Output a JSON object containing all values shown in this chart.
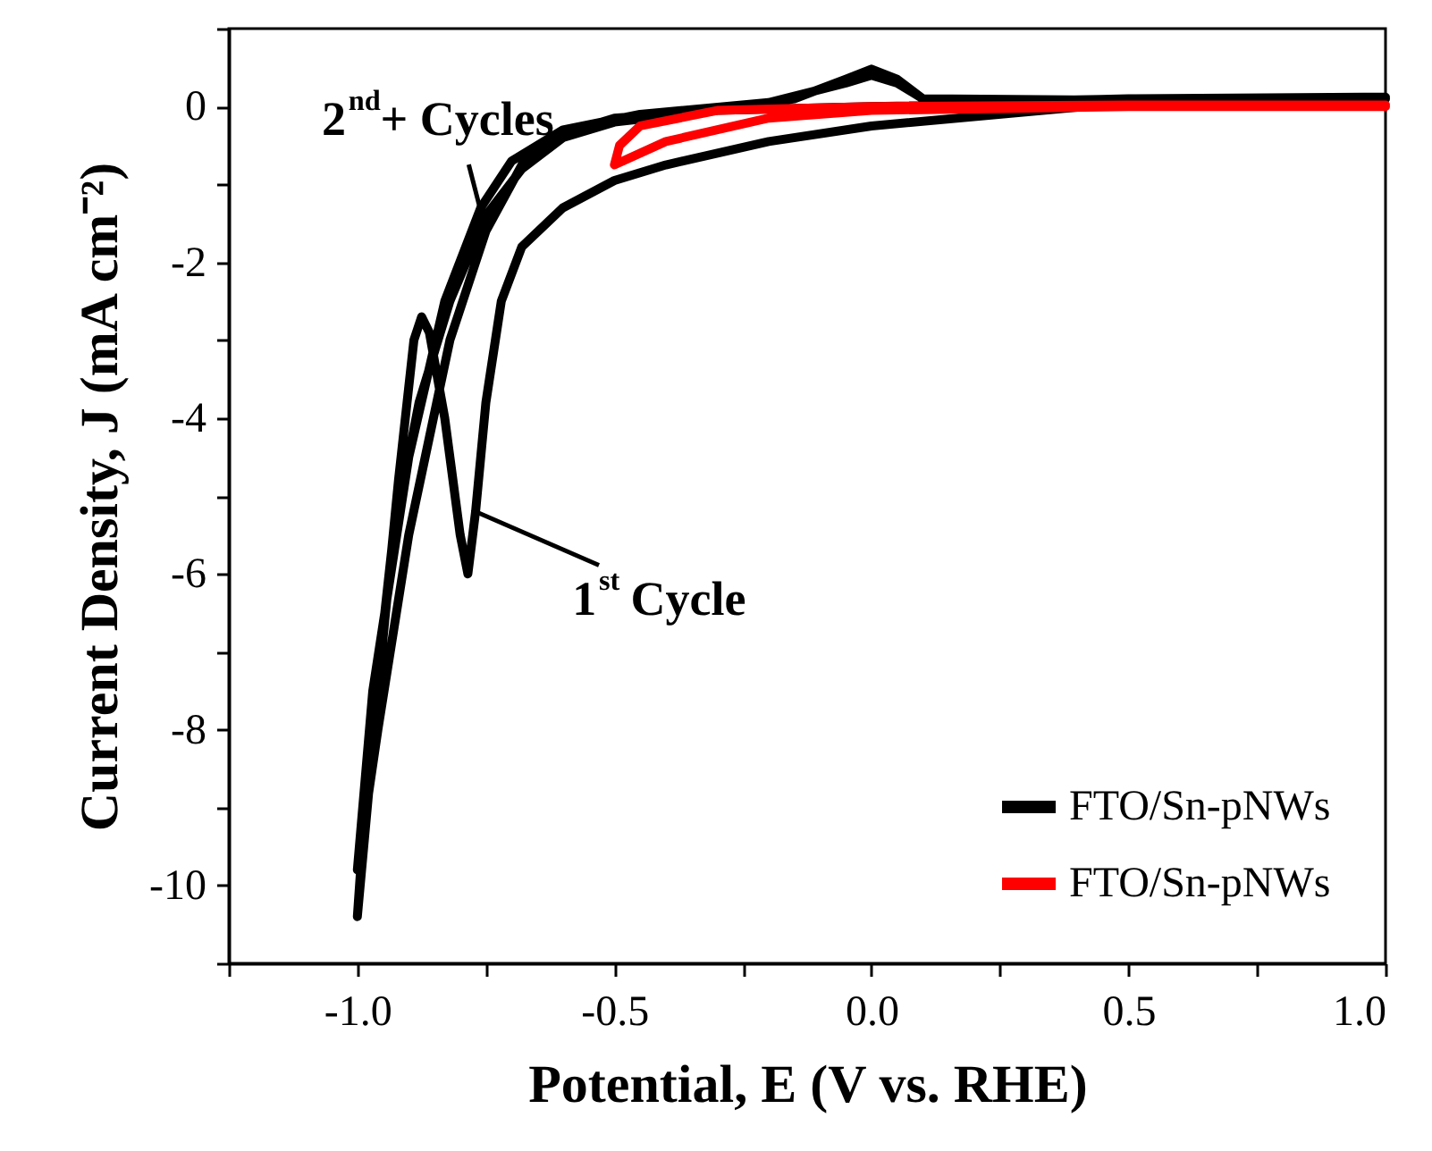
{
  "chart_data": {
    "type": "line",
    "xlabel": "Potential, E (V vs. RHE)",
    "ylabel": "Current Density, J (mA cm⁻²)",
    "xlim": [
      -1.25,
      1.0
    ],
    "ylim": [
      -11,
      1
    ],
    "xticks": [
      {
        "value": -1.25,
        "label": null
      },
      {
        "value": -1.0,
        "label": "-1.0"
      },
      {
        "value": -0.75,
        "label": null
      },
      -0.5,
      {
        "value": -0.25,
        "label": null
      },
      {
        "value": 0.0,
        "label": "0.0"
      },
      {
        "value": 0.25,
        "label": null
      },
      0.5,
      {
        "value": 0.75,
        "label": null
      },
      {
        "value": 1.0,
        "label": "1.0"
      }
    ],
    "yticks": [
      {
        "value": -11,
        "label": null
      },
      -10,
      {
        "value": -9,
        "label": null
      },
      -8,
      {
        "value": -7,
        "label": null
      },
      -6,
      {
        "value": -5,
        "label": null
      },
      -4,
      {
        "value": -3,
        "label": null
      },
      -2,
      {
        "value": -1,
        "label": null
      },
      0,
      {
        "value": 1,
        "label": null
      }
    ],
    "grid": false,
    "legend": "bottom right",
    "line_style": "solid",
    "marker": "none",
    "series": [
      {
        "name": "FTO/Sn-pNWs",
        "color": "#000000",
        "x": [
          1.0,
          0.5,
          0.0,
          -0.2,
          -0.4,
          -0.5,
          -0.6,
          -0.68,
          -0.72,
          -0.75,
          -0.77,
          -0.785,
          -0.8,
          -0.83,
          -0.86,
          -0.875,
          -0.89,
          -0.92,
          -0.96,
          -1.0,
          -0.98,
          -0.93,
          -0.88,
          -0.82,
          -0.75,
          -0.68,
          -0.6,
          -0.5,
          -0.3,
          -0.15,
          -0.05,
          0.0,
          0.05,
          0.1,
          0.2,
          0.5,
          1.0,
          0.5,
          0.0,
          -0.3,
          -0.5,
          -0.6,
          -0.68,
          -0.75,
          -0.82,
          -0.9,
          -0.96,
          -1.0,
          -0.97,
          -0.9,
          -0.83,
          -0.76,
          -0.7,
          -0.6,
          -0.45,
          -0.2,
          -0.05,
          0.0,
          0.05,
          0.1,
          0.5,
          1.0
        ],
        "values": [
          0.1,
          0.05,
          -0.25,
          -0.45,
          -0.75,
          -0.95,
          -1.3,
          -1.8,
          -2.5,
          -3.8,
          -5.2,
          -6.0,
          -5.5,
          -4.0,
          -2.9,
          -2.7,
          -3.0,
          -4.8,
          -7.5,
          -10.4,
          -8.5,
          -5.5,
          -3.8,
          -2.5,
          -1.4,
          -0.8,
          -0.4,
          -0.2,
          -0.05,
          0.1,
          0.35,
          0.48,
          0.35,
          0.1,
          0.05,
          0.1,
          0.12,
          0.05,
          0.0,
          -0.05,
          -0.15,
          -0.35,
          -0.75,
          -1.6,
          -3.0,
          -5.5,
          -8.0,
          -9.8,
          -7.5,
          -4.5,
          -2.5,
          -1.3,
          -0.7,
          -0.3,
          -0.1,
          0.05,
          0.3,
          0.4,
          0.3,
          0.1,
          0.08,
          0.12
        ]
      },
      {
        "name": "FTO/Sn-pNWs",
        "color": "#ff0000",
        "x": [
          1.0,
          0.5,
          0.0,
          -0.2,
          -0.4,
          -0.5,
          -0.49,
          -0.45,
          -0.3,
          0.0,
          0.5,
          1.0
        ],
        "values": [
          0.0,
          0.0,
          -0.05,
          -0.15,
          -0.45,
          -0.75,
          -0.5,
          -0.25,
          -0.05,
          0.0,
          0.02,
          0.02
        ]
      }
    ],
    "annotations": [
      {
        "text": "2$^{nd}$+ Cycles",
        "x": -0.75,
        "y": -1.6
      },
      {
        "text": "1$^{st}$ Cycle",
        "x": -0.77,
        "y": -5.2
      }
    ]
  }
}
